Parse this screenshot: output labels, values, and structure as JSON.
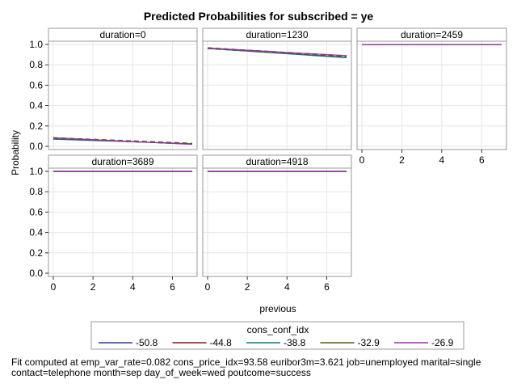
{
  "chart_data": {
    "type": "line",
    "title": "Predicted Probabilities for subscribed = ye",
    "xlabel": "previous",
    "ylabel": "Probability",
    "xlim": [
      0,
      7
    ],
    "ylim": [
      0,
      1
    ],
    "x_ticks": [
      "0",
      "2",
      "4",
      "6"
    ],
    "y_ticks": [
      "0.0",
      "0.2",
      "0.4",
      "0.6",
      "0.8",
      "1.0"
    ],
    "grid": true,
    "legend_title": "cons_conf_idx",
    "legend_position": "bottom",
    "series_colors": [
      "#2f3f8f",
      "#8b1a1a",
      "#0f7a7a",
      "#5a5a10",
      "#9b30b0"
    ],
    "panels": [
      {
        "label": "duration=0",
        "series": [
          {
            "name": "-50.8",
            "x": [
              0,
              7
            ],
            "y": [
              0.07,
              0.025
            ]
          },
          {
            "name": "-44.8",
            "x": [
              0,
              7
            ],
            "y": [
              0.08,
              0.025
            ]
          },
          {
            "name": "-38.8",
            "x": [
              0,
              7
            ],
            "y": [
              0.075,
              0.022
            ]
          },
          {
            "name": "-32.9",
            "x": [
              0,
              7
            ],
            "y": [
              0.08,
              0.026
            ]
          },
          {
            "name": "-26.9",
            "x": [
              0,
              7
            ],
            "y": [
              0.085,
              0.018
            ]
          }
        ]
      },
      {
        "label": "duration=1230",
        "series": [
          {
            "name": "-50.8",
            "x": [
              0,
              7
            ],
            "y": [
              0.962,
              0.875
            ]
          },
          {
            "name": "-44.8",
            "x": [
              0,
              7
            ],
            "y": [
              0.963,
              0.885
            ]
          },
          {
            "name": "-38.8",
            "x": [
              0,
              7
            ],
            "y": [
              0.96,
              0.87
            ]
          },
          {
            "name": "-32.9",
            "x": [
              0,
              7
            ],
            "y": [
              0.964,
              0.88
            ]
          },
          {
            "name": "-26.9",
            "x": [
              0,
              7
            ],
            "y": [
              0.965,
              0.89
            ]
          }
        ]
      },
      {
        "label": "duration=2459",
        "series": [
          {
            "name": "-50.8",
            "x": [
              0,
              7
            ],
            "y": [
              0.999,
              0.998
            ]
          },
          {
            "name": "-44.8",
            "x": [
              0,
              7
            ],
            "y": [
              0.999,
              0.998
            ]
          },
          {
            "name": "-38.8",
            "x": [
              0,
              7
            ],
            "y": [
              0.999,
              0.998
            ]
          },
          {
            "name": "-32.9",
            "x": [
              0,
              7
            ],
            "y": [
              0.999,
              0.998
            ]
          },
          {
            "name": "-26.9",
            "x": [
              0,
              7
            ],
            "y": [
              0.999,
              0.998
            ]
          }
        ]
      },
      {
        "label": "duration=3689",
        "series": [
          {
            "name": "-50.8",
            "x": [
              0,
              7
            ],
            "y": [
              1.0,
              1.0
            ]
          },
          {
            "name": "-44.8",
            "x": [
              0,
              7
            ],
            "y": [
              1.0,
              1.0
            ]
          },
          {
            "name": "-38.8",
            "x": [
              0,
              7
            ],
            "y": [
              1.0,
              1.0
            ]
          },
          {
            "name": "-32.9",
            "x": [
              0,
              7
            ],
            "y": [
              1.0,
              1.0
            ]
          },
          {
            "name": "-26.9",
            "x": [
              0,
              7
            ],
            "y": [
              1.0,
              1.0
            ]
          }
        ]
      },
      {
        "label": "duration=4918",
        "series": [
          {
            "name": "-50.8",
            "x": [
              0,
              7
            ],
            "y": [
              1.0,
              1.0
            ]
          },
          {
            "name": "-44.8",
            "x": [
              0,
              7
            ],
            "y": [
              1.0,
              1.0
            ]
          },
          {
            "name": "-38.8",
            "x": [
              0,
              7
            ],
            "y": [
              1.0,
              1.0
            ]
          },
          {
            "name": "-32.9",
            "x": [
              0,
              7
            ],
            "y": [
              1.0,
              1.0
            ]
          },
          {
            "name": "-26.9",
            "x": [
              0,
              7
            ],
            "y": [
              1.0,
              1.0
            ]
          }
        ]
      }
    ]
  },
  "footnote": {
    "line1": "Fit computed at emp_var_rate=0.082 cons_price_idx=93.58 euribor3m=3.621 job=unemployed marital=single",
    "line2": "contact=telephone month=sep day_of_week=wed poutcome=success"
  }
}
